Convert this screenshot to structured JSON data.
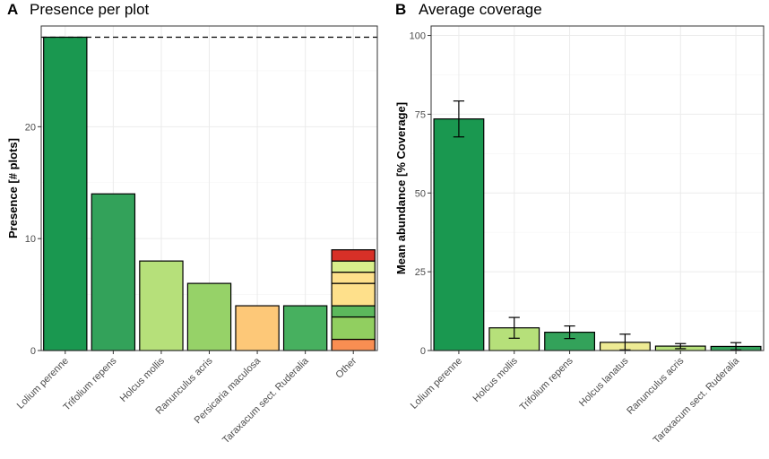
{
  "chart_data": [
    {
      "type": "bar",
      "panel": "A",
      "title": "Presence per plot",
      "xlabel": "",
      "ylabel": "Presence [# plots]",
      "ylim": [
        0,
        29
      ],
      "yticks": [
        0,
        10,
        20
      ],
      "reference_line": 28,
      "categories": [
        "Lolium perenne",
        "Trifolium repens",
        "Holcus mollis",
        "Ranunculus acris",
        "Persicaria maculosa",
        "Taraxacum sect. Ruderalia",
        "Other"
      ],
      "values": [
        28,
        14,
        8,
        6,
        4,
        4,
        9
      ],
      "colors": [
        "#1a9850",
        "#33a25a",
        "#b6e07a",
        "#96d268",
        "#fdc878",
        "#47b05f",
        null
      ],
      "stacked_other": [
        {
          "value": 1,
          "color": "#f98e52"
        },
        {
          "value": 2,
          "color": "#91cf60"
        },
        {
          "value": 1,
          "color": "#5cb85c"
        },
        {
          "value": 2,
          "color": "#fee08b"
        },
        {
          "value": 1,
          "color": "#fee08b"
        },
        {
          "value": 1,
          "color": "#d9ef8b"
        },
        {
          "value": 1,
          "color": "#d73027"
        }
      ]
    },
    {
      "type": "bar",
      "panel": "B",
      "title": "Average coverage",
      "xlabel": "",
      "ylabel": "Mean abundance [% Coverage]",
      "ylim": [
        0,
        103
      ],
      "yticks": [
        0,
        25,
        50,
        75,
        100
      ],
      "categories": [
        "Lolium perenne",
        "Holcus mollis",
        "Trifolium repens",
        "Holcus lanatus",
        "Ranunculus acris",
        "Taraxacum sect. Ruderalia"
      ],
      "values": [
        73.5,
        7.2,
        5.8,
        2.6,
        1.4,
        1.3
      ],
      "error_low": [
        67.8,
        3.9,
        3.8,
        0.2,
        0.6,
        0.2
      ],
      "error_high": [
        79.2,
        10.5,
        7.8,
        5.2,
        2.2,
        2.5
      ],
      "colors": [
        "#1a9850",
        "#b6e07a",
        "#33a25a",
        "#eeeb94",
        "#b6e07a",
        "#33a25a"
      ]
    }
  ]
}
